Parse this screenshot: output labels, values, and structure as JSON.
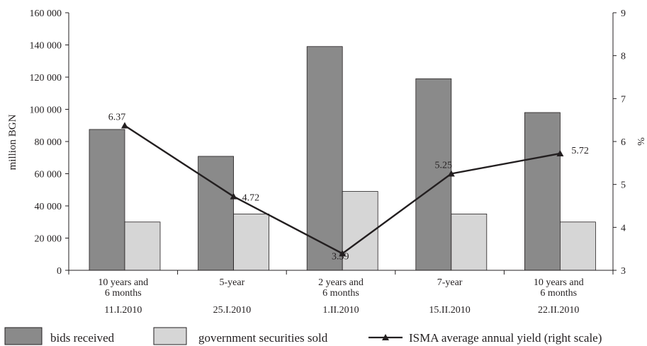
{
  "colors": {
    "bids_received": "#8a8a8a",
    "government_securities_sold": "#d6d6d6",
    "line": "#231f20",
    "axis": "#231f20"
  },
  "chart_data": {
    "type": "bar",
    "categories": [
      {
        "lines": [
          "10 years and",
          "6 months"
        ],
        "date": "11.I.2010"
      },
      {
        "lines": [
          "5-year"
        ],
        "date": "25.I.2010"
      },
      {
        "lines": [
          "2 years and",
          "6 months"
        ],
        "date": "1.II.2010"
      },
      {
        "lines": [
          "7-year"
        ],
        "date": "15.II.2010"
      },
      {
        "lines": [
          "10 years and",
          "6 months"
        ],
        "date": "22.II.2010"
      }
    ],
    "series": [
      {
        "name": "bids received",
        "type": "bar",
        "axis": "left",
        "values": [
          87500,
          70800,
          139000,
          119000,
          98000
        ]
      },
      {
        "name": "government securities sold",
        "type": "bar",
        "axis": "left",
        "values": [
          30000,
          35000,
          49000,
          35000,
          30000
        ]
      },
      {
        "name": "ISMA average annual yield (right scale)",
        "type": "line",
        "axis": "right",
        "marker": "triangle",
        "values": [
          6.37,
          4.72,
          3.39,
          5.25,
          5.72
        ],
        "labels": [
          "6.37",
          "4.72",
          "3.39",
          "5.25",
          "5.72"
        ]
      }
    ],
    "y_left": {
      "label": "million BGN",
      "min": 0,
      "max": 160000,
      "ticks": [
        0,
        20000,
        40000,
        60000,
        80000,
        100000,
        120000,
        140000,
        160000
      ],
      "tick_labels": [
        "0",
        "20 000",
        "40 000",
        "60 000",
        "80 000",
        "100 000",
        "120 000",
        "140 000",
        "160 000"
      ]
    },
    "y_right": {
      "label": "%",
      "min": 3,
      "max": 9,
      "ticks": [
        3,
        4,
        5,
        6,
        7,
        8,
        9
      ],
      "tick_labels": [
        "3",
        "4",
        "5",
        "6",
        "7",
        "8",
        "9"
      ]
    },
    "grid": false,
    "legend_position": "bottom"
  }
}
